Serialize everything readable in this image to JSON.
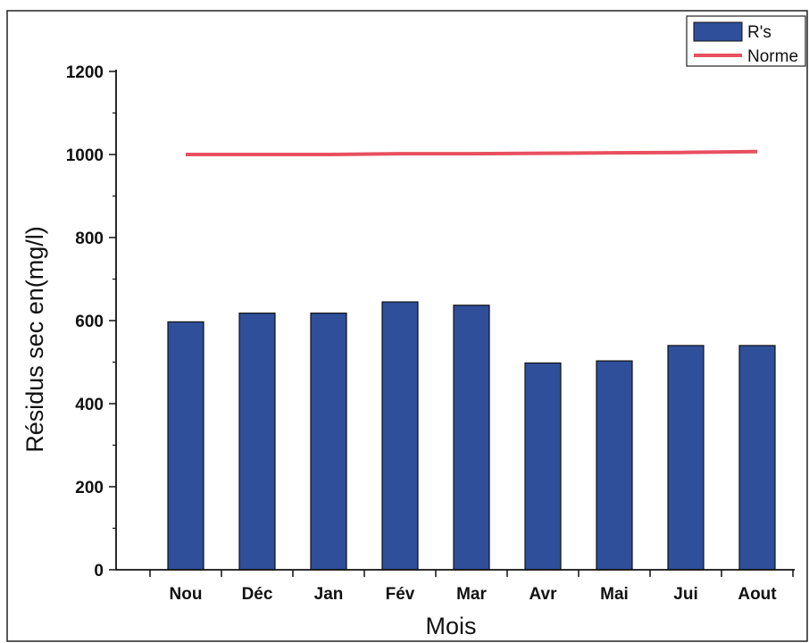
{
  "chart_data": {
    "type": "bar",
    "categories": [
      "Nou",
      "Déc",
      "Jan",
      "Fév",
      "Mar",
      "Avr",
      "Mai",
      "Jui",
      "Aout"
    ],
    "series": [
      {
        "name": "Rs",
        "type": "bar",
        "values": [
          597,
          618,
          618,
          645,
          637,
          498,
          503,
          540,
          540
        ],
        "color": "#2f4f9a"
      },
      {
        "name": "Norme",
        "type": "line",
        "values": [
          1000,
          1000,
          1000,
          1002,
          1002,
          1003,
          1004,
          1005,
          1007
        ],
        "color": "#e8505f"
      }
    ],
    "title": "",
    "xlabel": "Mois",
    "ylabel": "Résidus sec en(mg/l)",
    "ylim": [
      0,
      1200
    ],
    "yticks": [
      0,
      200,
      400,
      600,
      800,
      1000,
      1200
    ],
    "grid": false,
    "legend": "top-right"
  },
  "legend": {
    "bar_label": "R's",
    "line_label": "Norme"
  }
}
